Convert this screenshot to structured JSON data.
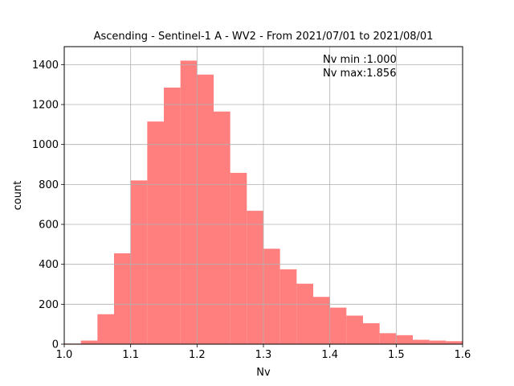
{
  "chart_data": {
    "type": "bar",
    "title": "Ascending - Sentinel-1 A - WV2 - From 2021/07/01 to 2021/08/01",
    "xlabel": "Nv",
    "ylabel": "count",
    "xlim": [
      1.0,
      1.6
    ],
    "ylim": [
      0,
      1490
    ],
    "grid": true,
    "bar_color": "#ff7f7f",
    "bin_edges": [
      1.0,
      1.025,
      1.05,
      1.075,
      1.1,
      1.125,
      1.15,
      1.175,
      1.2,
      1.225,
      1.25,
      1.275,
      1.3,
      1.325,
      1.35,
      1.375,
      1.4,
      1.425,
      1.45,
      1.475,
      1.5,
      1.525,
      1.55,
      1.575,
      1.6
    ],
    "values": [
      3,
      18,
      150,
      455,
      820,
      1115,
      1285,
      1420,
      1350,
      1165,
      858,
      668,
      478,
      375,
      303,
      237,
      183,
      143,
      105,
      55,
      45,
      22,
      18,
      15
    ],
    "x_ticks": [
      1.0,
      1.1,
      1.2,
      1.3,
      1.4,
      1.5,
      1.6
    ],
    "x_tick_labels": [
      "1.0",
      "1.1",
      "1.2",
      "1.3",
      "1.4",
      "1.5",
      "1.6"
    ],
    "y_ticks": [
      0,
      200,
      400,
      600,
      800,
      1000,
      1200,
      1400
    ],
    "y_tick_labels": [
      "0",
      "200",
      "400",
      "600",
      "800",
      "1000",
      "1200",
      "1400"
    ],
    "annotations": [
      "Nv min :1.000",
      "Nv max:1.856"
    ]
  }
}
